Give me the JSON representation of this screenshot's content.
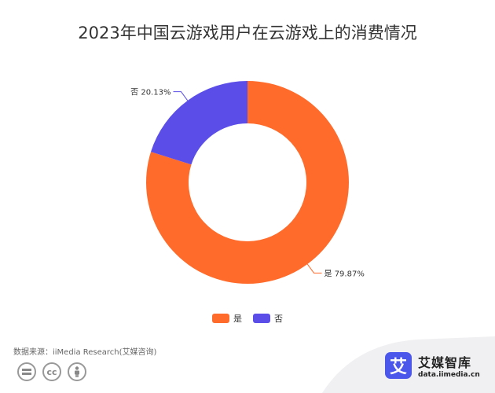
{
  "chart_data": {
    "type": "pie",
    "title": "2023年中国云游戏用户在云游戏上的消费情况",
    "donut": true,
    "slices": [
      {
        "name": "是",
        "value": 79.87,
        "label": "是 79.87%",
        "color": "#ff6b2b"
      },
      {
        "name": "否",
        "value": 20.13,
        "label": "否 20.13%",
        "color": "#5b4ee8"
      }
    ],
    "legend_placement": "bottom"
  },
  "legend": {
    "items": [
      {
        "label": "是",
        "color": "#ff6b2b"
      },
      {
        "label": "否",
        "color": "#5b4ee8"
      }
    ]
  },
  "footer": {
    "source": "数据来源：iiMedia Research(艾媒咨询)",
    "cc_icons": [
      "equals-icon",
      "cc-icon",
      "person-icon"
    ],
    "brand_logo_char": "艾",
    "brand_name": "艾媒智库",
    "brand_url": "data.iimedia.cn"
  }
}
